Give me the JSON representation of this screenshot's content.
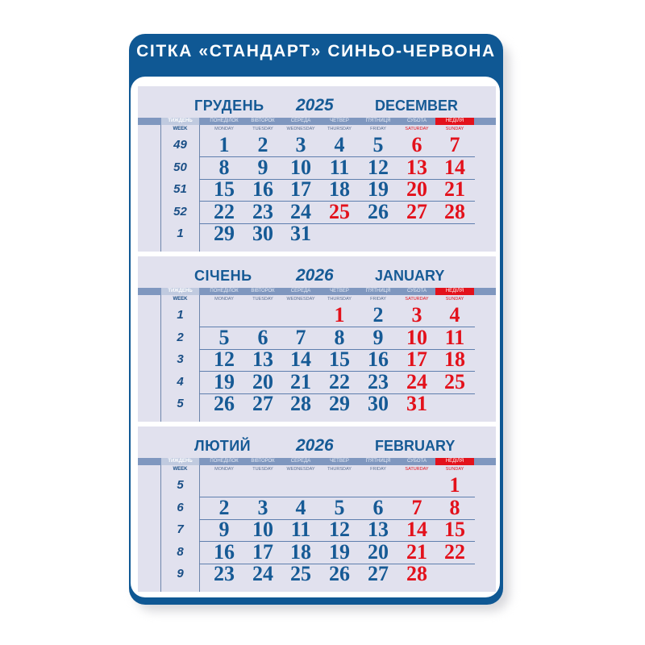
{
  "header": {
    "title": "СІТКА «СТАНДАРТ» СИНЬО-ЧЕРВОНА"
  },
  "colors": {
    "brand_blue": "#0f5894",
    "red": "#e3111b",
    "panel": "#e1e1ee"
  },
  "labels": {
    "week_ua": "ТИЖДЕНЬ",
    "week_en": "WEEK",
    "days_ua": [
      "ПОНЕДІЛОК",
      "ВІВТОРОК",
      "СЕРЕДА",
      "ЧЕТВЕР",
      "П'ЯТНИЦЯ",
      "СУБОТА",
      "НЕДІЛЯ"
    ],
    "days_en": [
      "MONDAY",
      "TUESDAY",
      "WEDNESDAY",
      "THURSDAY",
      "FRIDAY",
      "SATURDAY",
      "SUNDAY"
    ]
  },
  "months": [
    {
      "name_ua": "ГРУДЕНЬ",
      "year": "2025",
      "name_en": "DECEMBER",
      "holidays": [
        25
      ],
      "weeks": [
        {
          "n": "49",
          "days": [
            1,
            2,
            3,
            4,
            5,
            6,
            7
          ]
        },
        {
          "n": "50",
          "days": [
            8,
            9,
            10,
            11,
            12,
            13,
            14
          ]
        },
        {
          "n": "51",
          "days": [
            15,
            16,
            17,
            18,
            19,
            20,
            21
          ]
        },
        {
          "n": "52",
          "days": [
            22,
            23,
            24,
            25,
            26,
            27,
            28
          ]
        },
        {
          "n": "1",
          "days": [
            29,
            30,
            31,
            null,
            null,
            null,
            null
          ]
        }
      ]
    },
    {
      "name_ua": "СІЧЕНЬ",
      "year": "2026",
      "name_en": "JANUARY",
      "holidays": [
        1
      ],
      "weeks": [
        {
          "n": "1",
          "days": [
            null,
            null,
            null,
            1,
            2,
            3,
            4
          ]
        },
        {
          "n": "2",
          "days": [
            5,
            6,
            7,
            8,
            9,
            10,
            11
          ]
        },
        {
          "n": "3",
          "days": [
            12,
            13,
            14,
            15,
            16,
            17,
            18
          ]
        },
        {
          "n": "4",
          "days": [
            19,
            20,
            21,
            22,
            23,
            24,
            25
          ]
        },
        {
          "n": "5",
          "days": [
            26,
            27,
            28,
            29,
            30,
            31,
            null
          ]
        }
      ]
    },
    {
      "name_ua": "ЛЮТИЙ",
      "year": "2026",
      "name_en": "FEBRUARY",
      "holidays": [],
      "weeks": [
        {
          "n": "5",
          "days": [
            null,
            null,
            null,
            null,
            null,
            null,
            1
          ]
        },
        {
          "n": "6",
          "days": [
            2,
            3,
            4,
            5,
            6,
            7,
            8
          ]
        },
        {
          "n": "7",
          "days": [
            9,
            10,
            11,
            12,
            13,
            14,
            15
          ]
        },
        {
          "n": "8",
          "days": [
            16,
            17,
            18,
            19,
            20,
            21,
            22
          ]
        },
        {
          "n": "9",
          "days": [
            23,
            24,
            25,
            26,
            27,
            28,
            null
          ]
        }
      ]
    }
  ]
}
